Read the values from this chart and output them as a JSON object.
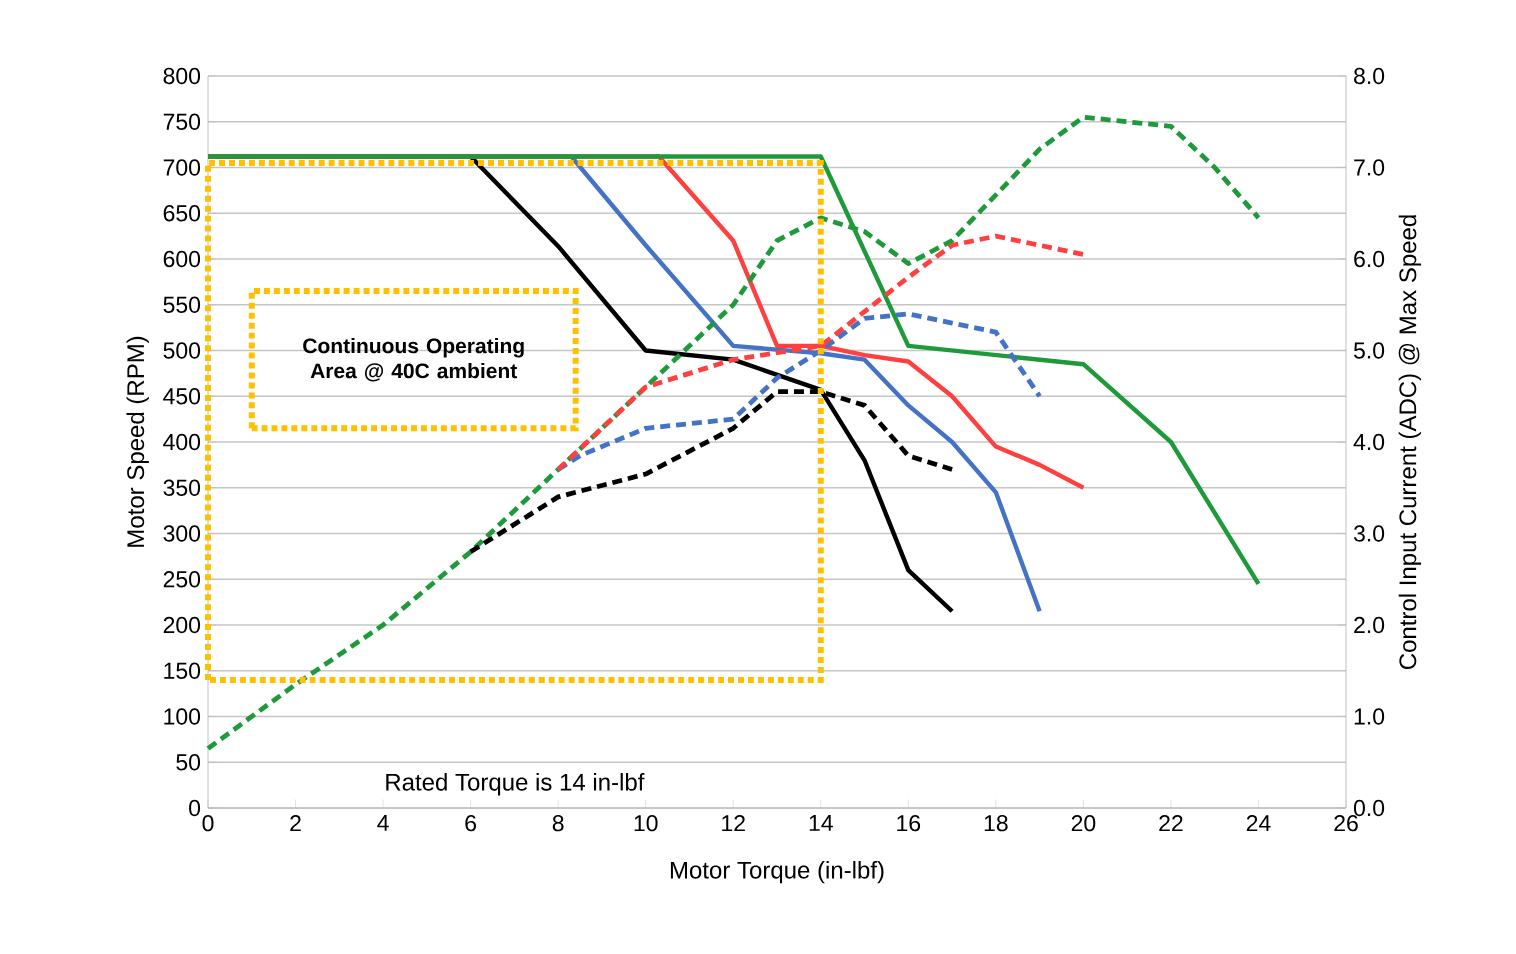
{
  "chart_data": {
    "type": "line",
    "xlabel": "Motor Torque (in-lbf)",
    "ylabel": "Motor Speed (RPM)",
    "y2label": "Control Input Current (ADC) @ Max Speed",
    "xlim": [
      0,
      26
    ],
    "ylim": [
      0,
      800
    ],
    "y2lim": [
      0,
      8
    ],
    "xticks": [
      0,
      2,
      4,
      6,
      8,
      10,
      12,
      14,
      16,
      18,
      20,
      22,
      24,
      26
    ],
    "yticks": [
      0,
      50,
      100,
      150,
      200,
      250,
      300,
      350,
      400,
      450,
      500,
      550,
      600,
      650,
      700,
      750,
      800
    ],
    "y2ticks": [
      {
        "value": 0,
        "label": "0.0"
      },
      {
        "value": 1,
        "label": "1.0"
      },
      {
        "value": 2,
        "label": "2.0"
      },
      {
        "value": 3,
        "label": "3.0"
      },
      {
        "value": 4,
        "label": "4.0"
      },
      {
        "value": 5,
        "label": "5.0"
      },
      {
        "value": 6,
        "label": "6.0"
      },
      {
        "value": 7,
        "label": "7.0"
      },
      {
        "value": 8,
        "label": "8.0"
      }
    ],
    "grid": "y",
    "annotations": [
      "Continuous Operating Area @ 40C ambient",
      "Rated Torque is 14 in-lbf"
    ],
    "series": [
      {
        "color": "#000000",
        "line_style": "solid",
        "x": [
          0,
          6,
          8,
          10,
          12,
          14,
          15,
          16,
          17
        ],
        "values": [
          712,
          712,
          614,
          500,
          490,
          457,
          380,
          260,
          215
        ]
      },
      {
        "color": "#4472c4",
        "line_style": "solid",
        "x": [
          0,
          8.3,
          10,
          12,
          14,
          15,
          16,
          17,
          18,
          19
        ],
        "values": [
          712,
          712,
          615,
          505,
          497,
          490,
          440,
          400,
          345,
          215
        ]
      },
      {
        "color": "#ff4040",
        "line_style": "solid",
        "x": [
          0,
          10.3,
          12,
          13,
          14,
          15,
          16,
          17,
          18,
          19,
          20
        ],
        "values": [
          712,
          712,
          620,
          505,
          505,
          495,
          488,
          450,
          395,
          375,
          350
        ]
      },
      {
        "color": "#1e9a3a",
        "line_style": "solid",
        "x": [
          0,
          14,
          16,
          18,
          20,
          22,
          24
        ],
        "values": [
          712,
          712,
          505,
          495,
          485,
          400,
          245
        ]
      },
      {
        "axis": "y2",
        "color": "#1e9a3a",
        "line_style": "dashed",
        "x": [
          0,
          2,
          4,
          6,
          8,
          10,
          12,
          13,
          14,
          15,
          16,
          17,
          18,
          19,
          20,
          21,
          22,
          23,
          24
        ],
        "values": [
          0.65,
          1.35,
          2.0,
          2.8,
          3.7,
          4.6,
          5.5,
          6.2,
          6.45,
          6.3,
          5.95,
          6.2,
          6.7,
          7.2,
          7.55,
          7.5,
          7.45,
          7.0,
          6.45
        ]
      },
      {
        "axis": "y2",
        "color": "#000000",
        "line_style": "dashed",
        "x": [
          6,
          8,
          10,
          12,
          13,
          14,
          15,
          16,
          17
        ],
        "values": [
          2.8,
          3.4,
          3.65,
          4.15,
          4.55,
          4.55,
          4.4,
          3.85,
          3.7
        ]
      },
      {
        "axis": "y2",
        "color": "#4472c4",
        "line_style": "dashed",
        "x": [
          8,
          8.5,
          10,
          12,
          13,
          14,
          15,
          16,
          17,
          18,
          19
        ],
        "values": [
          3.7,
          3.85,
          4.15,
          4.25,
          4.7,
          5.0,
          5.35,
          5.4,
          5.3,
          5.2,
          4.5
        ]
      },
      {
        "axis": "y2",
        "color": "#ff4040",
        "line_style": "dashed",
        "x": [
          8,
          10,
          12,
          14,
          16,
          17,
          18,
          19,
          20
        ],
        "values": [
          3.7,
          4.6,
          4.9,
          5.05,
          5.8,
          6.15,
          6.25,
          6.15,
          6.05
        ]
      }
    ]
  }
}
